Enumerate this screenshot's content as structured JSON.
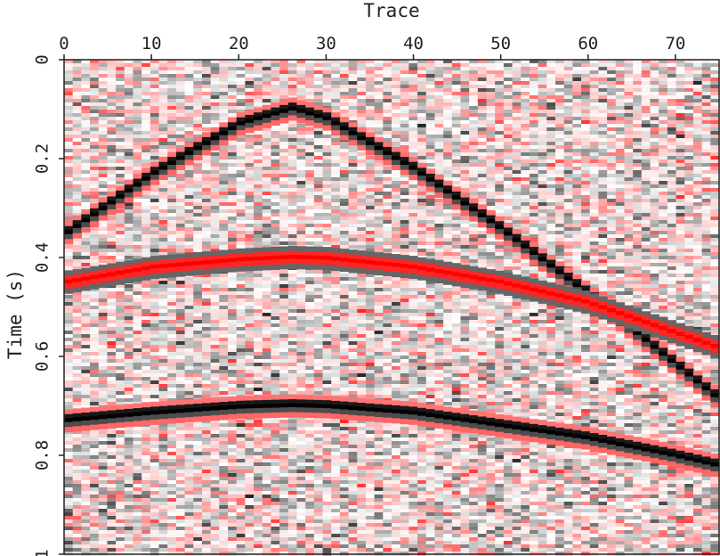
{
  "chart_data": {
    "type": "heatmap",
    "title": "",
    "xlabel": "Trace",
    "ylabel": "Time (s)",
    "xlim": [
      0,
      75
    ],
    "ylim": [
      0,
      1
    ],
    "y_axis_inverted": true,
    "x_axis_position": "top",
    "x_ticks": [
      "0",
      "10",
      "20",
      "30",
      "40",
      "50",
      "60",
      "70"
    ],
    "y_ticks": [
      "0",
      "0.2",
      "0.4",
      "0.6",
      "0.8",
      "1"
    ],
    "colormap": {
      "negative": "#000000",
      "zero": "#ffffff",
      "positive": "#ff0000"
    },
    "background": "random noise",
    "series": [
      {
        "kind": "hyperbolic event",
        "apex_trace": 26,
        "apex_time": 0.1,
        "x": [
          0,
          10,
          20,
          26,
          30,
          40,
          50,
          60,
          70,
          75
        ],
        "y": [
          0.35,
          0.23,
          0.13,
          0.1,
          0.12,
          0.22,
          0.34,
          0.47,
          0.61,
          0.68
        ]
      },
      {
        "kind": "hyperbolic event",
        "apex_trace": 26,
        "apex_time": 0.4,
        "x": [
          0,
          10,
          20,
          26,
          30,
          40,
          50,
          60,
          70,
          75
        ],
        "y": [
          0.45,
          0.42,
          0.405,
          0.4,
          0.402,
          0.42,
          0.45,
          0.49,
          0.55,
          0.58
        ]
      },
      {
        "kind": "hyperbolic event",
        "apex_trace": 26,
        "apex_time": 0.7,
        "x": [
          0,
          10,
          20,
          26,
          30,
          40,
          50,
          60,
          70,
          75
        ],
        "y": [
          0.73,
          0.715,
          0.703,
          0.7,
          0.702,
          0.715,
          0.74,
          0.765,
          0.8,
          0.82
        ]
      }
    ]
  }
}
